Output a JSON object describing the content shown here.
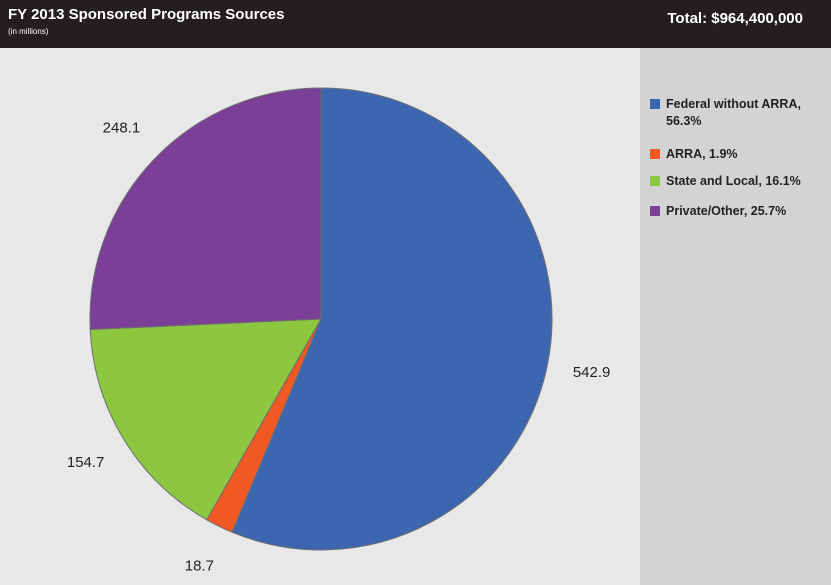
{
  "chart_data": {
    "type": "pie",
    "title": "FY 2013 Sponsored Programs Sources",
    "subtitle": "(in millions)",
    "annotation": "Total: $964,400,000",
    "categories": [
      "Federal without ARRA, 56.3%",
      "ARRA, 1.9%",
      "State and Local, 16.1%",
      "Private/Other, 25.7%"
    ],
    "values": [
      542.9,
      18.7,
      154.7,
      248.1
    ],
    "colors": [
      "#3d66b0",
      "#f05a22",
      "#8dc63f",
      "#7b3f98"
    ]
  }
}
